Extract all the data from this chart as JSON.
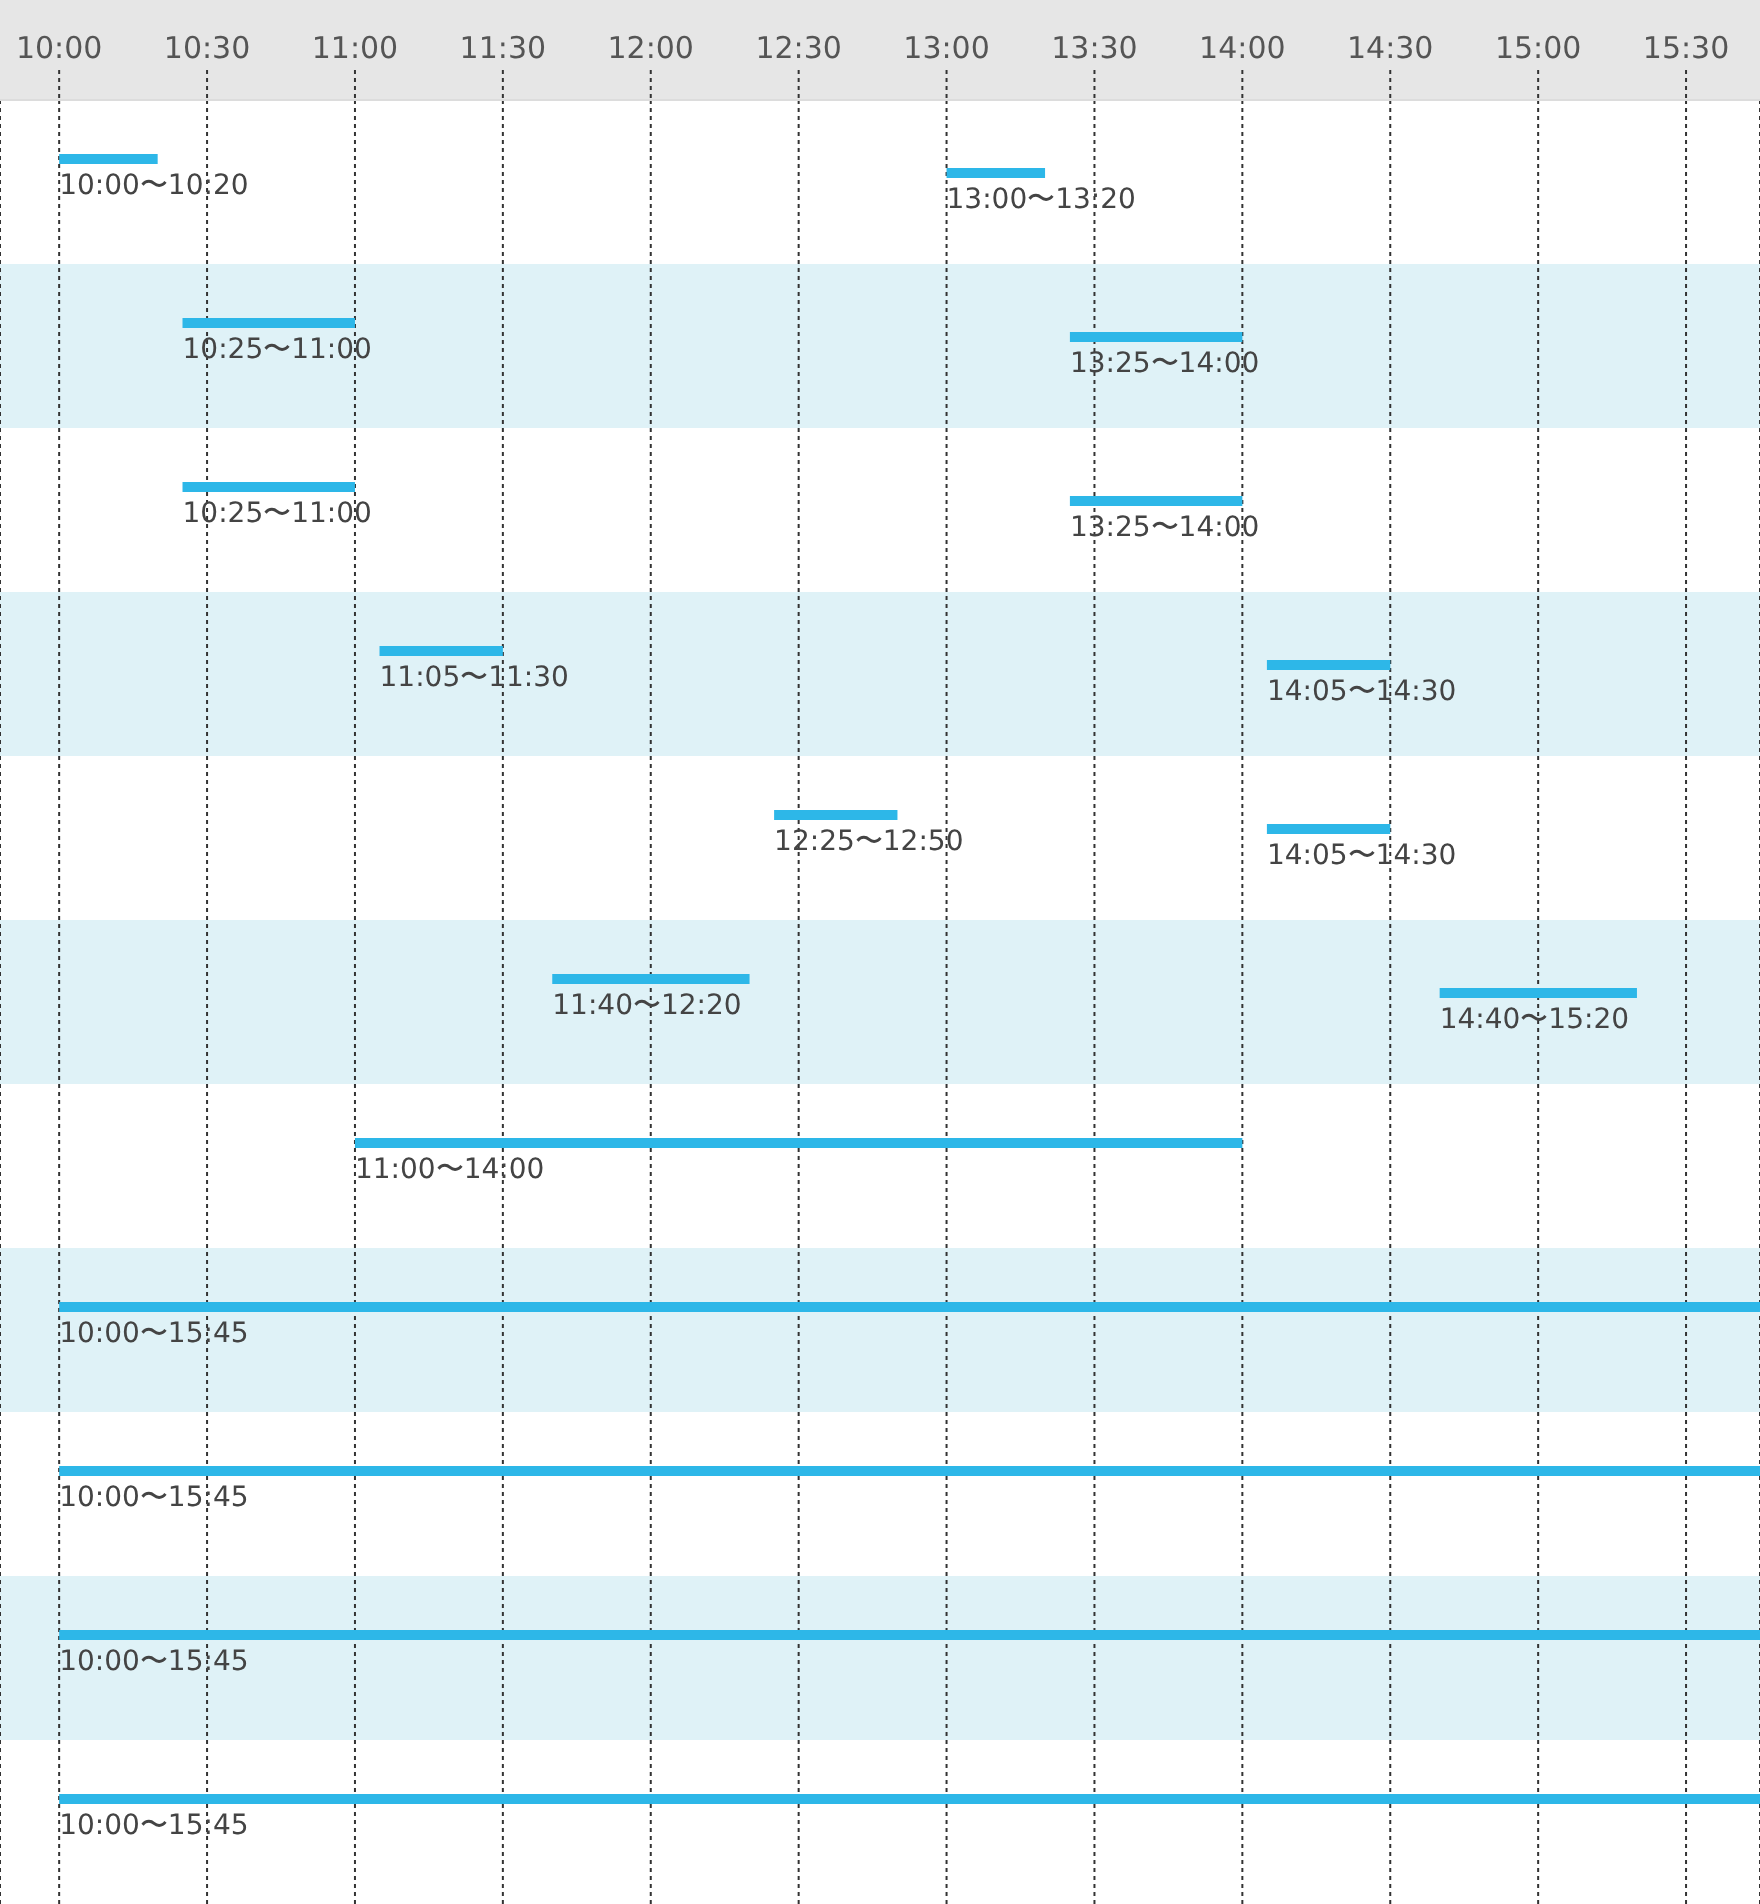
{
  "chart_data": {
    "type": "bar",
    "orientation": "horizontal",
    "categories": [
      null,
      null,
      null,
      null,
      null,
      null,
      null,
      null,
      null,
      null,
      null
    ],
    "series": [
      {
        "color": "#2db7e8",
        "base": [
          10,
          10.417,
          10.417,
          11.083,
          12.417,
          11.667,
          11,
          10,
          10,
          10,
          10
        ],
        "values": [
          0.333,
          0.583,
          0.583,
          0.417,
          0.417,
          0.667,
          3,
          5.75,
          5.75,
          5.75,
          5.75
        ],
        "value_labels": [
          "10:00〜10:20",
          "10:25〜11:00",
          "10:25〜11:00",
          "11:05〜11:30",
          "12:25〜12:50",
          "11:40〜12:20",
          "11:00〜14:00",
          "10:00〜15:45",
          "10:00〜15:45",
          "10:00〜15:45",
          "10:00〜15:45"
        ]
      },
      {
        "color": "#2db7e8",
        "base": [
          13,
          13.417,
          13.417,
          14.083,
          14.083,
          14.667,
          null,
          null,
          null,
          null,
          null
        ],
        "values": [
          0.333,
          0.583,
          0.583,
          0.417,
          0.417,
          0.667,
          null,
          null,
          null,
          null,
          null
        ],
        "value_labels": [
          "13:00〜13:20",
          "13:25〜14:00",
          "13:25〜14:00",
          "14:05〜14:30",
          "14:05〜14:30",
          "14:40〜15:20",
          null,
          null,
          null,
          null,
          null
        ]
      }
    ],
    "xlim": [
      9.8,
      15.75
    ],
    "xticks": [
      {
        "value": 10,
        "label": "10:00"
      },
      {
        "value": 10.5,
        "label": "10:30"
      },
      {
        "value": 11,
        "label": "11:00"
      },
      {
        "value": 11.5,
        "label": "11:30"
      },
      {
        "value": 12,
        "label": "12:00"
      },
      {
        "value": 12.5,
        "label": "12:30"
      },
      {
        "value": 13,
        "label": "13:00"
      },
      {
        "value": 13.5,
        "label": "13:30"
      },
      {
        "value": 14,
        "label": "14:00"
      },
      {
        "value": 14.5,
        "label": "14:30"
      },
      {
        "value": 15,
        "label": "15:00"
      },
      {
        "value": 15.5,
        "label": "15:30"
      }
    ],
    "grid": "x",
    "tick_labels": "x"
  }
}
